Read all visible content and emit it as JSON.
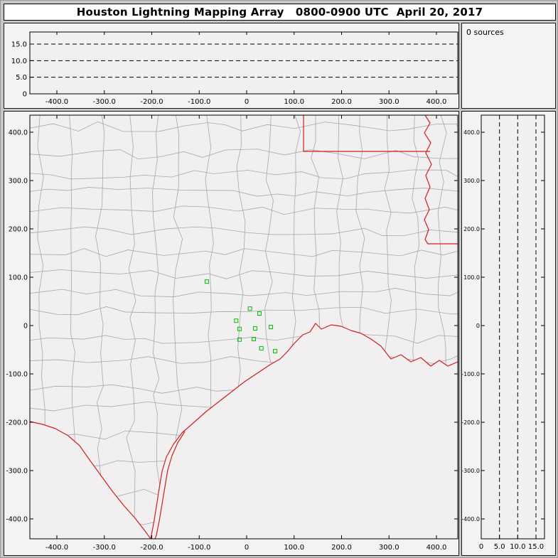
{
  "title": "Houston Lightning Mapping Array   0800-0900 UTC  April 20, 2017",
  "sources_panel": {
    "label": "0 sources"
  },
  "colors": {
    "frame_bg": "#c6c6c6",
    "panel_bg": "#f4f3f4",
    "plot_bg": "#f1eff0",
    "title_bg": "#ffffff",
    "axis": "#000000",
    "county_line": "#a8a8a8",
    "state_border": "#cc2020",
    "station_marker": "#00c000"
  },
  "chart_data": [
    {
      "type": "scatter",
      "name": "altitude-vs-east-west",
      "x_ticks": [
        "-400.0",
        "-300.0",
        "-200.0",
        "-100.0",
        "0",
        "100.0",
        "200.0",
        "300.0",
        "400.0"
      ],
      "x_tick_values": [
        -400,
        -300,
        -200,
        -100,
        0,
        100,
        200,
        300,
        400
      ],
      "y_ticks": [
        "15.0",
        "10.0",
        "5.0",
        "0"
      ],
      "y_tick_values": [
        15,
        10,
        5,
        0
      ],
      "y_gridlines": [
        5,
        10,
        15
      ],
      "xlim": [
        -450,
        450
      ],
      "ylim": [
        0,
        19
      ],
      "points": []
    },
    {
      "type": "scatter",
      "name": "plan-view-map",
      "x_ticks": [
        "-400.0",
        "-300.0",
        "-200.0",
        "-100.0",
        "0",
        "100.0",
        "200.0",
        "300.0",
        "400.0"
      ],
      "x_tick_values": [
        -400,
        -300,
        -200,
        -100,
        0,
        100,
        200,
        300,
        400
      ],
      "y_ticks": [
        "400.0",
        "300.0",
        "200.0",
        "100.0",
        "0",
        "-100.0",
        "-200.0",
        "-300.0",
        "-400.0"
      ],
      "y_tick_values": [
        400,
        300,
        200,
        100,
        0,
        -100,
        -200,
        -300,
        -400
      ],
      "xlim": [
        -450,
        450
      ],
      "ylim": [
        -440,
        440
      ],
      "stations_km": [
        [
          -84,
          91
        ],
        [
          7,
          35
        ],
        [
          27,
          25
        ],
        [
          -22,
          10
        ],
        [
          51,
          -3
        ],
        [
          -15,
          -7
        ],
        [
          18,
          -6
        ],
        [
          -15,
          -29
        ],
        [
          15,
          -28
        ],
        [
          31,
          -47
        ],
        [
          60,
          -53
        ]
      ],
      "points": []
    },
    {
      "type": "scatter",
      "name": "altitude-vs-north-south",
      "x_ticks": [
        "0",
        "5.0",
        "10.0",
        "15.0"
      ],
      "x_tick_values": [
        0,
        5,
        10,
        15
      ],
      "x_gridlines": [
        5,
        10,
        15
      ],
      "y_ticks": [
        "400.0",
        "300.0",
        "200.0",
        "100.0",
        "0",
        "-100.0",
        "-200.0",
        "-300.0",
        "-400.0"
      ],
      "y_tick_values": [
        400,
        300,
        200,
        100,
        0,
        -100,
        -200,
        -300,
        -400
      ],
      "xlim": [
        0,
        19
      ],
      "ylim": [
        -440,
        440
      ],
      "points": []
    }
  ]
}
